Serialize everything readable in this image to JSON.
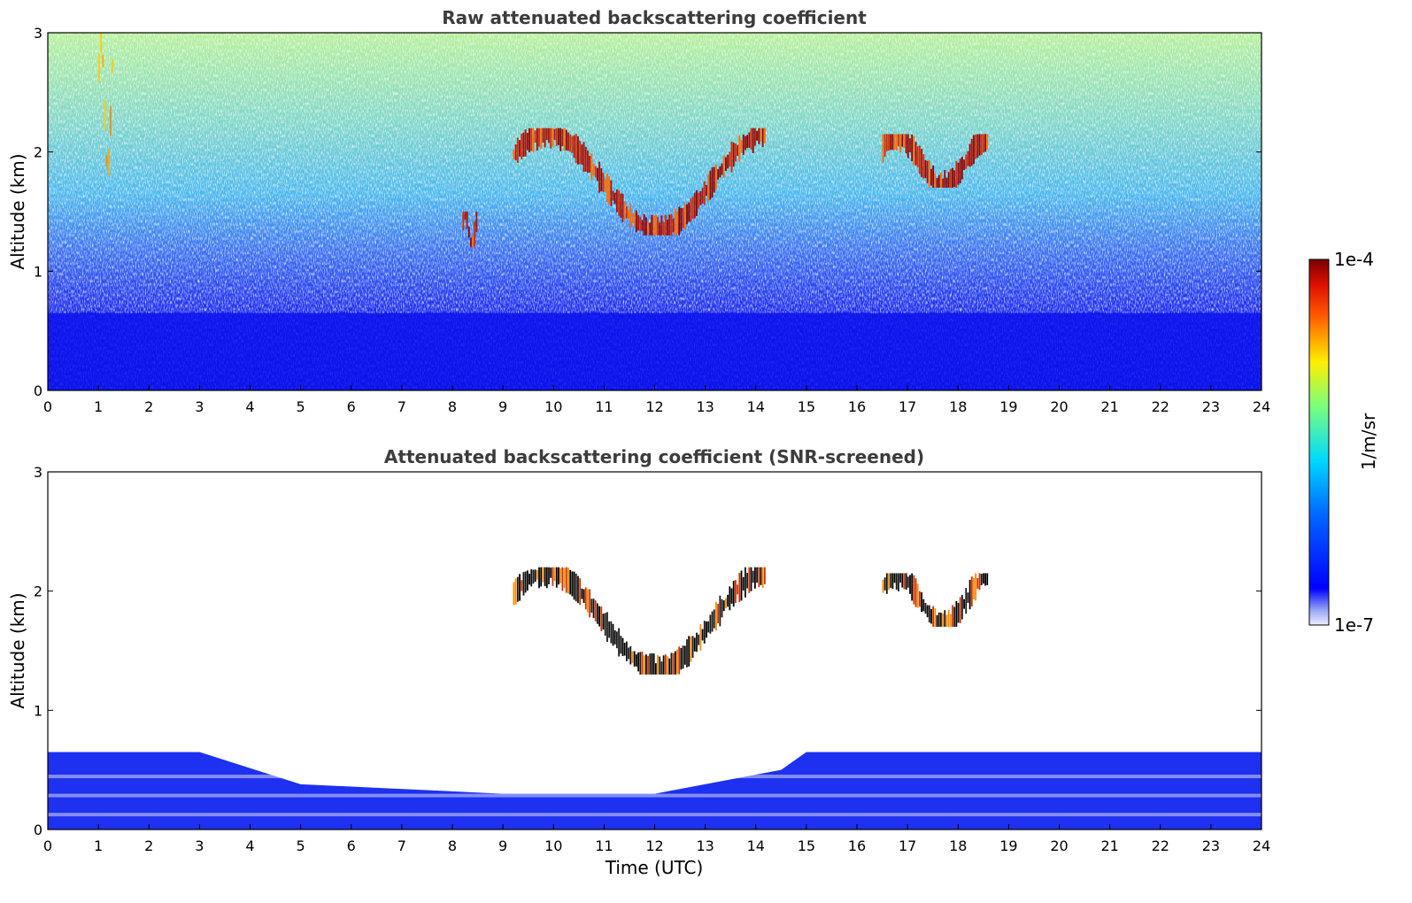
{
  "chart_data": [
    {
      "type": "heatmap",
      "title": "Raw attenuated backscattering coefficient",
      "xlabel": "",
      "ylabel": "Altitude (km)",
      "xlim": [
        0,
        24
      ],
      "ylim": [
        0,
        3
      ],
      "xticks": [
        "0",
        "1",
        "2",
        "3",
        "4",
        "5",
        "6",
        "7",
        "8",
        "9",
        "10",
        "11",
        "12",
        "13",
        "14",
        "15",
        "16",
        "17",
        "18",
        "19",
        "20",
        "21",
        "22",
        "23",
        "24"
      ],
      "yticks": [
        "0",
        "1",
        "2",
        "3"
      ],
      "features": {
        "boundary_layer_top_km": 0.65,
        "cloud_layers": [
          {
            "t_start": 9.2,
            "t_end": 14.2,
            "alt_km": [
              1.3,
              2.2
            ]
          },
          {
            "t_start": 16.5,
            "t_end": 18.6,
            "alt_km": [
              1.7,
              2.15
            ]
          },
          {
            "t_start": 1.0,
            "t_end": 1.3,
            "alt_km": [
              1.8,
              3.0
            ]
          },
          {
            "t_start": 8.2,
            "t_end": 8.5,
            "alt_km": [
              1.2,
              1.5
            ]
          }
        ]
      }
    },
    {
      "type": "heatmap",
      "title": "Attenuated backscattering coefficient (SNR-screened)",
      "xlabel": "Time (UTC)",
      "ylabel": "Altitude (km)",
      "xlim": [
        0,
        24
      ],
      "ylim": [
        0,
        3
      ],
      "xticks": [
        "0",
        "1",
        "2",
        "3",
        "4",
        "5",
        "6",
        "7",
        "8",
        "9",
        "10",
        "11",
        "12",
        "13",
        "14",
        "15",
        "16",
        "17",
        "18",
        "19",
        "20",
        "21",
        "22",
        "23",
        "24"
      ],
      "yticks": [
        "0",
        "1",
        "2",
        "3"
      ],
      "features": {
        "boundary_layer_top_km_profile": [
          [
            0,
            0.65
          ],
          [
            3,
            0.65
          ],
          [
            5,
            0.38
          ],
          [
            9,
            0.3
          ],
          [
            12,
            0.3
          ],
          [
            14.5,
            0.5
          ],
          [
            15,
            0.65
          ],
          [
            24,
            0.65
          ]
        ],
        "cloud_layers": [
          {
            "t_start": 9.2,
            "t_end": 14.2,
            "alt_km": [
              1.3,
              2.2
            ]
          },
          {
            "t_start": 16.5,
            "t_end": 18.6,
            "alt_km": [
              1.7,
              2.15
            ]
          }
        ]
      }
    }
  ],
  "colorbar": {
    "label": "1/m/sr",
    "max_label": "1e-4",
    "min_label": "1e-7",
    "colormap": "jet"
  }
}
